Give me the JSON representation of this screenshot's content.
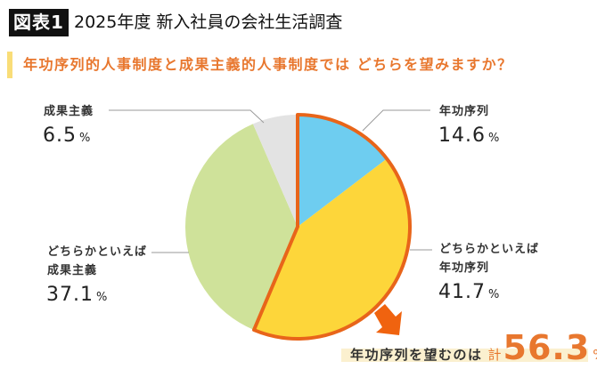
{
  "header": {
    "badge": "図表1",
    "title": "2025年度 新入社員の会社生活調査"
  },
  "question": "年功序列的人事制度と成果主義的人事制度では どちらを望みますか？",
  "labels": {
    "nenko": {
      "line1": "年功序列",
      "line2": "",
      "value": "14.6",
      "unit": "%"
    },
    "dochira_nenko": {
      "line1": "どちらかといえば",
      "line2": "年功序列",
      "value": "41.7",
      "unit": "%"
    },
    "dochira_seika": {
      "line1": "どちらかといえば",
      "line2": "成果主義",
      "value": "37.1",
      "unit": "%"
    },
    "seika": {
      "line1": "成果主義",
      "line2": "",
      "value": "6.5",
      "unit": "%"
    }
  },
  "summary": {
    "text": "年功序列を望むのは",
    "kei": "計",
    "value": "56.3",
    "unit": "%"
  },
  "colors": {
    "nenko": "#6ecdf0",
    "dochira_nenko": "#fdd63a",
    "dochira_seika": "#cfe29a",
    "seika": "#e3e3e3",
    "highlight_outline": "#e8651a",
    "accent": "#e8772e",
    "leader": "#9a9a9a"
  },
  "chart_data": {
    "type": "pie",
    "title": "年功序列的人事制度と成果主義的人事制度では どちらを望みますか？",
    "categories": [
      "年功序列",
      "どちらかといえば年功序列",
      "どちらかといえば成果主義",
      "成果主義"
    ],
    "values": [
      14.6,
      41.7,
      37.1,
      6.5
    ],
    "unit": "%",
    "start_angle": "top, clockwise",
    "highlighted_group": {
      "categories": [
        "年功序列",
        "どちらかといえば年功序列"
      ],
      "total": 56.3,
      "label": "年功序列を望むのは 計56.3%"
    }
  }
}
